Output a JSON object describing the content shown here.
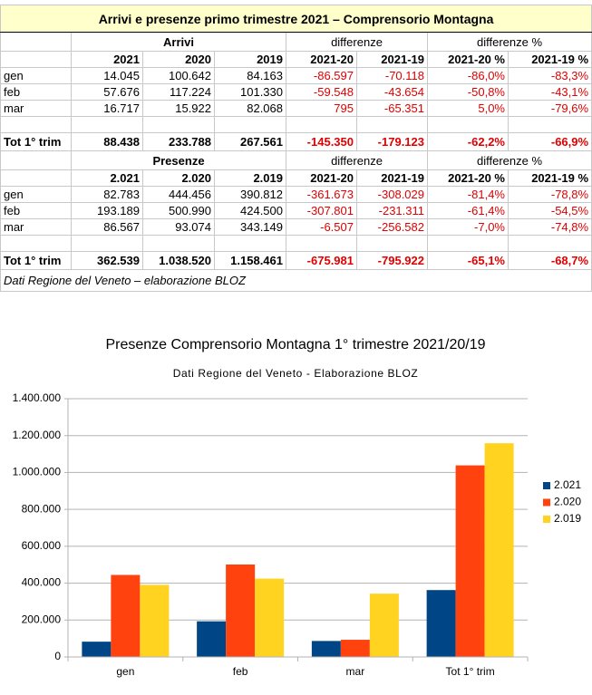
{
  "table": {
    "title": "Arrivi e presenze primo trimestre 2021 – Comprensorio Montagna",
    "sections": [
      {
        "header": [
          "Arrivi",
          "differenze",
          "differenze %"
        ],
        "columns": [
          "2021",
          "2020",
          "2019",
          "2021-20",
          "2021-19",
          "2021-20 %",
          "2021-19 %"
        ],
        "rows": [
          [
            "gen",
            "14.045",
            "100.642",
            "84.163",
            "-86.597",
            "-70.118",
            "-86,0%",
            "-83,3%"
          ],
          [
            "feb",
            "57.676",
            "117.224",
            "101.330",
            "-59.548",
            "-43.654",
            "-50,8%",
            "-43,1%"
          ],
          [
            "mar",
            "16.717",
            "15.922",
            "82.068",
            "795",
            "-65.351",
            "5,0%",
            "-79,6%"
          ]
        ],
        "total": [
          "Tot 1° trim",
          "88.438",
          "233.788",
          "267.561",
          "-145.350",
          "-179.123",
          "-62,2%",
          "-66,9%"
        ]
      },
      {
        "header": [
          "Presenze",
          "differenze",
          "differenze %"
        ],
        "columns": [
          "2.021",
          "2.020",
          "2.019",
          "2021-20",
          "2021-19",
          "2021-20 %",
          "2021-19 %"
        ],
        "rows": [
          [
            "gen",
            "82.783",
            "444.456",
            "390.812",
            "-361.673",
            "-308.029",
            "-81,4%",
            "-78,8%"
          ],
          [
            "feb",
            "193.189",
            "500.990",
            "424.500",
            "-307.801",
            "-231.311",
            "-61,4%",
            "-54,5%"
          ],
          [
            "mar",
            "86.567",
            "93.074",
            "343.149",
            "-6.507",
            "-256.582",
            "-7,0%",
            "-74,8%"
          ]
        ],
        "total": [
          "Tot 1° trim",
          "362.539",
          "1.038.520",
          "1.158.461",
          "-675.981",
          "-795.922",
          "-65,1%",
          "-68,7%"
        ]
      }
    ],
    "note": "Dati Regione del Veneto – elaborazione BLOZ"
  },
  "chart_data": {
    "type": "bar",
    "title": "Presenze Comprensorio Montagna 1° trimestre 2021/20/19",
    "subtitle": "Dati Regione del Veneto - Elaborazione BLOZ",
    "categories": [
      "gen",
      "feb",
      "mar",
      "Tot 1° trim"
    ],
    "series": [
      {
        "name": "2.021",
        "color": "#004586",
        "values": [
          82783,
          193189,
          86567,
          362539
        ]
      },
      {
        "name": "2.020",
        "color": "#ff420e",
        "values": [
          444456,
          500990,
          93074,
          1038520
        ]
      },
      {
        "name": "2.019",
        "color": "#ffd320",
        "values": [
          390812,
          424500,
          343149,
          1158461
        ]
      }
    ],
    "ylim": [
      0,
      1400000
    ],
    "yticks": [
      0,
      {
        "value": 200000,
        "label": "200.000"
      },
      {
        "value": 400000,
        "label": "400.000"
      },
      {
        "value": 600000,
        "label": "600.000"
      },
      {
        "value": 800000,
        "label": "800.000"
      },
      {
        "value": 1000000,
        "label": "1.000.000"
      },
      {
        "value": 1200000,
        "label": "1.200.000"
      },
      {
        "value": 1400000,
        "label": "1.400.000"
      }
    ],
    "grid": true,
    "legend": "right"
  }
}
